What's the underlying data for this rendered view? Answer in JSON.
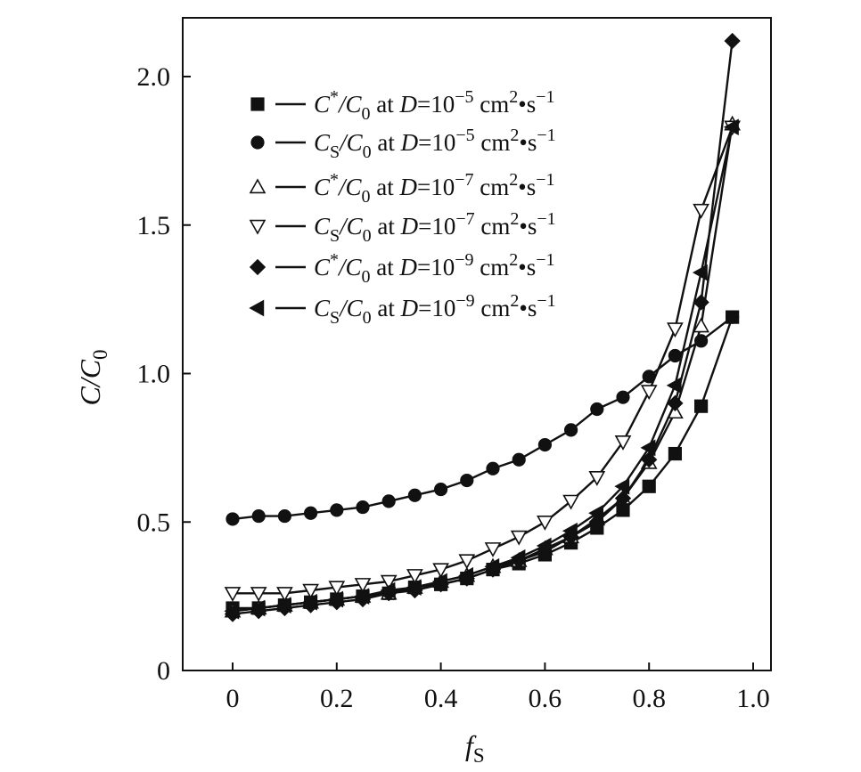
{
  "chart_data": {
    "type": "line",
    "xlabel_main": "f",
    "xlabel_sub": "S",
    "ylabel_main": "C/C",
    "ylabel_sub": "0",
    "xlim": [
      -0.1,
      1.0
    ],
    "ylim": [
      0,
      2.2
    ],
    "xticks": [
      0,
      0.2,
      0.4,
      0.6,
      0.8,
      1.0
    ],
    "xtick_labels": [
      "0",
      "0.2",
      "0.4",
      "0.6",
      "0.8",
      "1.0"
    ],
    "yticks": [
      0,
      0.5,
      1.0,
      1.5,
      2.0
    ],
    "ytick_labels": [
      "0",
      "0.5",
      "1.0",
      "1.5",
      "2.0"
    ],
    "legend_position": "top-left",
    "series": [
      {
        "name": "C*/C0 at D=10-5 cm2•s-1",
        "label_parts": {
          "sym": "C",
          "sup": "*",
          "sub": "",
          "exp": "−5"
        },
        "marker": "square",
        "points": [
          [
            0,
            0.21
          ],
          [
            0.05,
            0.21
          ],
          [
            0.1,
            0.22
          ],
          [
            0.15,
            0.23
          ],
          [
            0.2,
            0.24
          ],
          [
            0.25,
            0.25
          ],
          [
            0.3,
            0.26
          ],
          [
            0.35,
            0.28
          ],
          [
            0.4,
            0.29
          ],
          [
            0.45,
            0.31
          ],
          [
            0.5,
            0.34
          ],
          [
            0.55,
            0.36
          ],
          [
            0.6,
            0.39
          ],
          [
            0.65,
            0.43
          ],
          [
            0.7,
            0.48
          ],
          [
            0.75,
            0.54
          ],
          [
            0.8,
            0.62
          ],
          [
            0.85,
            0.73
          ],
          [
            0.9,
            0.89
          ],
          [
            0.96,
            1.19
          ]
        ]
      },
      {
        "name": "CS/C0 at D=10-5 cm2•s-1",
        "label_parts": {
          "sym": "C",
          "sup": "",
          "sub": "S",
          "exp": "−5"
        },
        "marker": "circle",
        "points": [
          [
            0,
            0.51
          ],
          [
            0.05,
            0.52
          ],
          [
            0.1,
            0.52
          ],
          [
            0.15,
            0.53
          ],
          [
            0.2,
            0.54
          ],
          [
            0.25,
            0.55
          ],
          [
            0.3,
            0.57
          ],
          [
            0.35,
            0.59
          ],
          [
            0.4,
            0.61
          ],
          [
            0.45,
            0.64
          ],
          [
            0.5,
            0.68
          ],
          [
            0.55,
            0.71
          ],
          [
            0.6,
            0.76
          ],
          [
            0.65,
            0.81
          ],
          [
            0.7,
            0.88
          ],
          [
            0.75,
            0.92
          ],
          [
            0.8,
            0.99
          ],
          [
            0.85,
            1.06
          ],
          [
            0.9,
            1.11
          ],
          [
            0.96,
            1.19
          ]
        ]
      },
      {
        "name": "C*/C0 at D=10-7 cm2•s-1",
        "label_parts": {
          "sym": "C",
          "sup": "*",
          "sub": "",
          "exp": "−7"
        },
        "marker": "triangle-up-open",
        "points": [
          [
            0,
            0.2
          ],
          [
            0.05,
            0.21
          ],
          [
            0.1,
            0.22
          ],
          [
            0.15,
            0.23
          ],
          [
            0.2,
            0.24
          ],
          [
            0.25,
            0.25
          ],
          [
            0.3,
            0.26
          ],
          [
            0.35,
            0.28
          ],
          [
            0.4,
            0.3
          ],
          [
            0.45,
            0.32
          ],
          [
            0.5,
            0.35
          ],
          [
            0.55,
            0.37
          ],
          [
            0.6,
            0.41
          ],
          [
            0.65,
            0.45
          ],
          [
            0.7,
            0.51
          ],
          [
            0.75,
            0.58
          ],
          [
            0.8,
            0.7
          ],
          [
            0.85,
            0.87
          ],
          [
            0.9,
            1.16
          ],
          [
            0.96,
            1.84
          ]
        ]
      },
      {
        "name": "CS/C0 at D=10-7 cm2•s-1",
        "label_parts": {
          "sym": "C",
          "sup": "",
          "sub": "S",
          "exp": "−7"
        },
        "marker": "triangle-down-open",
        "points": [
          [
            0,
            0.26
          ],
          [
            0.05,
            0.26
          ],
          [
            0.1,
            0.26
          ],
          [
            0.15,
            0.27
          ],
          [
            0.2,
            0.28
          ],
          [
            0.25,
            0.29
          ],
          [
            0.3,
            0.3
          ],
          [
            0.35,
            0.32
          ],
          [
            0.4,
            0.34
          ],
          [
            0.45,
            0.37
          ],
          [
            0.5,
            0.41
          ],
          [
            0.55,
            0.45
          ],
          [
            0.6,
            0.5
          ],
          [
            0.65,
            0.57
          ],
          [
            0.7,
            0.65
          ],
          [
            0.75,
            0.77
          ],
          [
            0.8,
            0.94
          ],
          [
            0.85,
            1.15
          ],
          [
            0.9,
            1.55
          ],
          [
            0.96,
            1.83
          ]
        ]
      },
      {
        "name": "C*/C0 at D=10-9 cm2•s-1",
        "label_parts": {
          "sym": "C",
          "sup": "*",
          "sub": "",
          "exp": "−9"
        },
        "marker": "diamond",
        "points": [
          [
            0,
            0.19
          ],
          [
            0.05,
            0.2
          ],
          [
            0.1,
            0.21
          ],
          [
            0.15,
            0.22
          ],
          [
            0.2,
            0.23
          ],
          [
            0.25,
            0.24
          ],
          [
            0.3,
            0.26
          ],
          [
            0.35,
            0.27
          ],
          [
            0.4,
            0.29
          ],
          [
            0.45,
            0.31
          ],
          [
            0.5,
            0.34
          ],
          [
            0.55,
            0.37
          ],
          [
            0.6,
            0.4
          ],
          [
            0.65,
            0.45
          ],
          [
            0.7,
            0.5
          ],
          [
            0.75,
            0.58
          ],
          [
            0.8,
            0.71
          ],
          [
            0.85,
            0.9
          ],
          [
            0.9,
            1.24
          ],
          [
            0.96,
            2.12
          ]
        ]
      },
      {
        "name": "CS/C0 at D=10-9 cm2•s-1",
        "label_parts": {
          "sym": "C",
          "sup": "",
          "sub": "S",
          "exp": "−9"
        },
        "marker": "triangle-left",
        "points": [
          [
            0,
            0.2
          ],
          [
            0.05,
            0.21
          ],
          [
            0.1,
            0.22
          ],
          [
            0.15,
            0.23
          ],
          [
            0.2,
            0.24
          ],
          [
            0.25,
            0.25
          ],
          [
            0.3,
            0.27
          ],
          [
            0.35,
            0.28
          ],
          [
            0.4,
            0.3
          ],
          [
            0.45,
            0.32
          ],
          [
            0.5,
            0.35
          ],
          [
            0.55,
            0.38
          ],
          [
            0.6,
            0.42
          ],
          [
            0.65,
            0.47
          ],
          [
            0.7,
            0.53
          ],
          [
            0.75,
            0.62
          ],
          [
            0.8,
            0.75
          ],
          [
            0.85,
            0.96
          ],
          [
            0.9,
            1.34
          ],
          [
            0.96,
            1.83
          ]
        ]
      }
    ],
    "legend_common": {
      "at": "at",
      "D": "D",
      "eq": "=10",
      "units_cm": "cm",
      "units_cm_exp": "2",
      "units_s": "•s",
      "units_s_exp": "−1",
      "over": "/C",
      "over_sub": "0"
    }
  }
}
